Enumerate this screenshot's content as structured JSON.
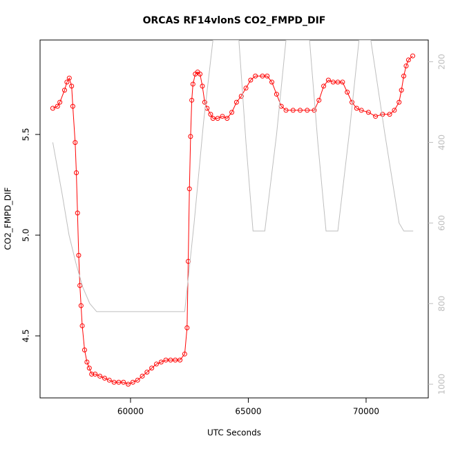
{
  "chart_data": {
    "type": "line",
    "title": "ORCAS RF14vlonS CO2_FMPD_DIF",
    "xlabel": "UTC Seconds",
    "ylabel": "CO2_FMPD_DIF",
    "xlim": [
      56160,
      72640
    ],
    "xticks": [
      60000,
      65000,
      70000
    ],
    "ylim": [
      4.192,
      5.969
    ],
    "yticks": [
      4.5,
      {
        "value": 5.0,
        "label": "5.0"
      },
      5.5
    ],
    "y2lim": [
      1034,
      146
    ],
    "y2ticks": [
      200,
      400,
      600,
      800,
      1000
    ],
    "series": [
      {
        "color": "#ff0000",
        "marker": "circle",
        "x": [
          56700,
          56900,
          57000,
          57200,
          57300,
          57400,
          57500,
          57550,
          57650,
          57700,
          57750,
          57800,
          57850,
          57900,
          57950,
          58050,
          58150,
          58250,
          58350,
          58500,
          58700,
          58900,
          59100,
          59300,
          59500,
          59700,
          59900,
          60100,
          60300,
          60500,
          60700,
          60900,
          61100,
          61300,
          61500,
          61700,
          61900,
          62100,
          62300,
          62400,
          62450,
          62500,
          62550,
          62600,
          62650,
          62750,
          62850,
          62950,
          63050,
          63150,
          63250,
          63400,
          63500,
          63700,
          63900,
          64100,
          64300,
          64500,
          64700,
          64900,
          65100,
          65300,
          65600,
          65800,
          66000,
          66200,
          66400,
          66600,
          66900,
          67200,
          67500,
          67800,
          68000,
          68200,
          68400,
          68600,
          68800,
          69000,
          69200,
          69400,
          69600,
          69800,
          70100,
          70400,
          70700,
          71000,
          71200,
          71400,
          71500,
          71600,
          71700,
          71800,
          71980
        ],
        "values": [
          5.63,
          5.64,
          5.66,
          5.72,
          5.76,
          5.78,
          5.74,
          5.64,
          5.46,
          5.31,
          5.11,
          4.9,
          4.75,
          4.65,
          4.55,
          4.43,
          4.37,
          4.34,
          4.31,
          4.31,
          4.3,
          4.29,
          4.28,
          4.27,
          4.27,
          4.27,
          4.26,
          4.27,
          4.28,
          4.3,
          4.32,
          4.34,
          4.36,
          4.37,
          4.38,
          4.38,
          4.38,
          4.38,
          4.41,
          4.54,
          4.87,
          5.23,
          5.49,
          5.67,
          5.75,
          5.8,
          5.81,
          5.8,
          5.74,
          5.66,
          5.63,
          5.6,
          5.58,
          5.58,
          5.59,
          5.58,
          5.61,
          5.66,
          5.69,
          5.73,
          5.77,
          5.79,
          5.79,
          5.79,
          5.76,
          5.7,
          5.64,
          5.62,
          5.62,
          5.62,
          5.62,
          5.62,
          5.67,
          5.74,
          5.77,
          5.76,
          5.76,
          5.76,
          5.71,
          5.66,
          5.63,
          5.62,
          5.61,
          5.59,
          5.6,
          5.6,
          5.62,
          5.66,
          5.72,
          5.79,
          5.84,
          5.87,
          5.89
        ]
      },
      {
        "color": "#bebebe",
        "axis": "y2",
        "x": [
          56700,
          57097,
          57390,
          57683,
          57977,
          58270,
          58563,
          62300,
          62700,
          63100,
          63500,
          64600,
          64900,
          65200,
          65700,
          66200,
          66600,
          67600,
          67950,
          68300,
          68800,
          69300,
          69700,
          70200,
          70800,
          71400,
          71600,
          72000
        ],
        "values": [
          400,
          528,
          630,
          700,
          760,
          800,
          820,
          820,
          600,
          350,
          146,
          146,
          400,
          620,
          620,
          380,
          146,
          146,
          400,
          620,
          620,
          370,
          146,
          146,
          380,
          600,
          620,
          620
        ]
      }
    ]
  }
}
